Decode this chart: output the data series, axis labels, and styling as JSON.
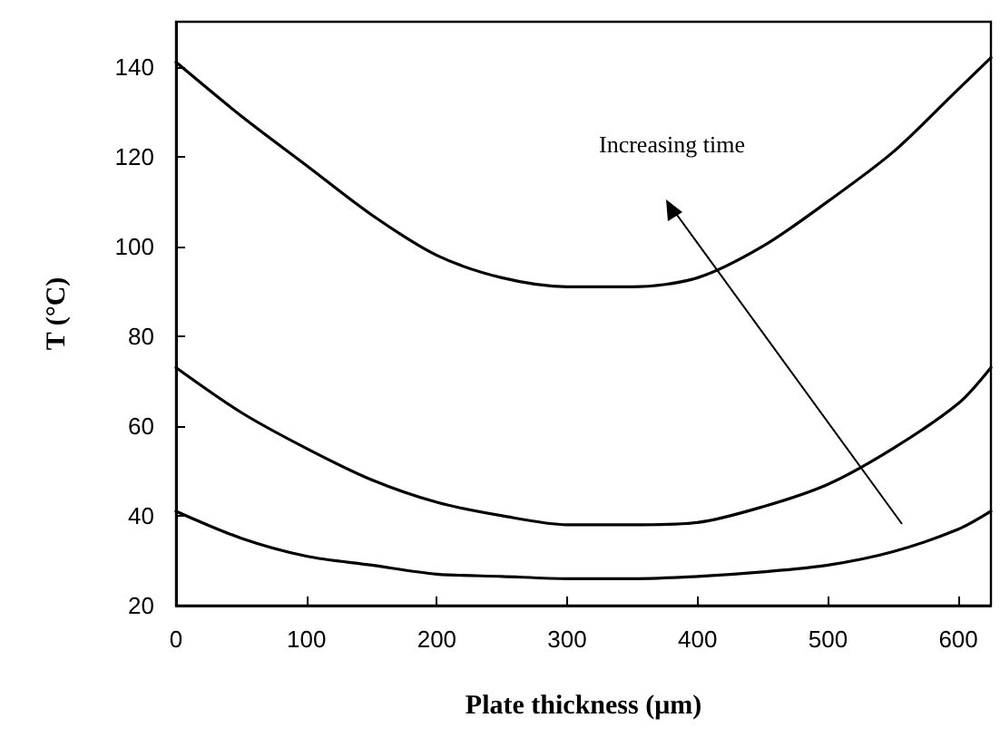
{
  "chart_data": {
    "type": "line",
    "xlabel": "Plate thickness (μm)",
    "ylabel": "T (°C)",
    "annotations": [
      "Increasing time"
    ],
    "xlim": [
      0,
      625
    ],
    "ylim": [
      20,
      150
    ],
    "xticks": [
      0,
      100,
      200,
      300,
      400,
      500,
      600
    ],
    "yticks": [
      20,
      40,
      60,
      80,
      100,
      120,
      140
    ],
    "grid": false,
    "marker": "none",
    "line_style": "solid",
    "series": [
      {
        "color": "#000000",
        "x": [
          0,
          50,
          100,
          150,
          200,
          250,
          300,
          350,
          400,
          450,
          500,
          550,
          600,
          625
        ],
        "values": [
          141,
          129,
          118,
          107,
          98,
          93,
          91,
          91,
          93,
          100,
          110,
          121,
          135,
          142
        ]
      },
      {
        "color": "#000000",
        "x": [
          0,
          50,
          100,
          150,
          200,
          250,
          300,
          350,
          400,
          450,
          500,
          550,
          600,
          625
        ],
        "values": [
          73,
          63,
          55,
          48,
          43,
          40,
          38,
          38,
          38.5,
          42,
          47,
          55,
          65,
          73
        ]
      },
      {
        "color": "#000000",
        "x": [
          0,
          50,
          100,
          150,
          200,
          250,
          300,
          350,
          400,
          450,
          500,
          550,
          600,
          625
        ],
        "values": [
          41,
          35,
          31,
          29,
          27,
          26.5,
          26,
          26,
          26.5,
          27.5,
          29,
          32,
          37,
          41
        ]
      }
    ]
  }
}
